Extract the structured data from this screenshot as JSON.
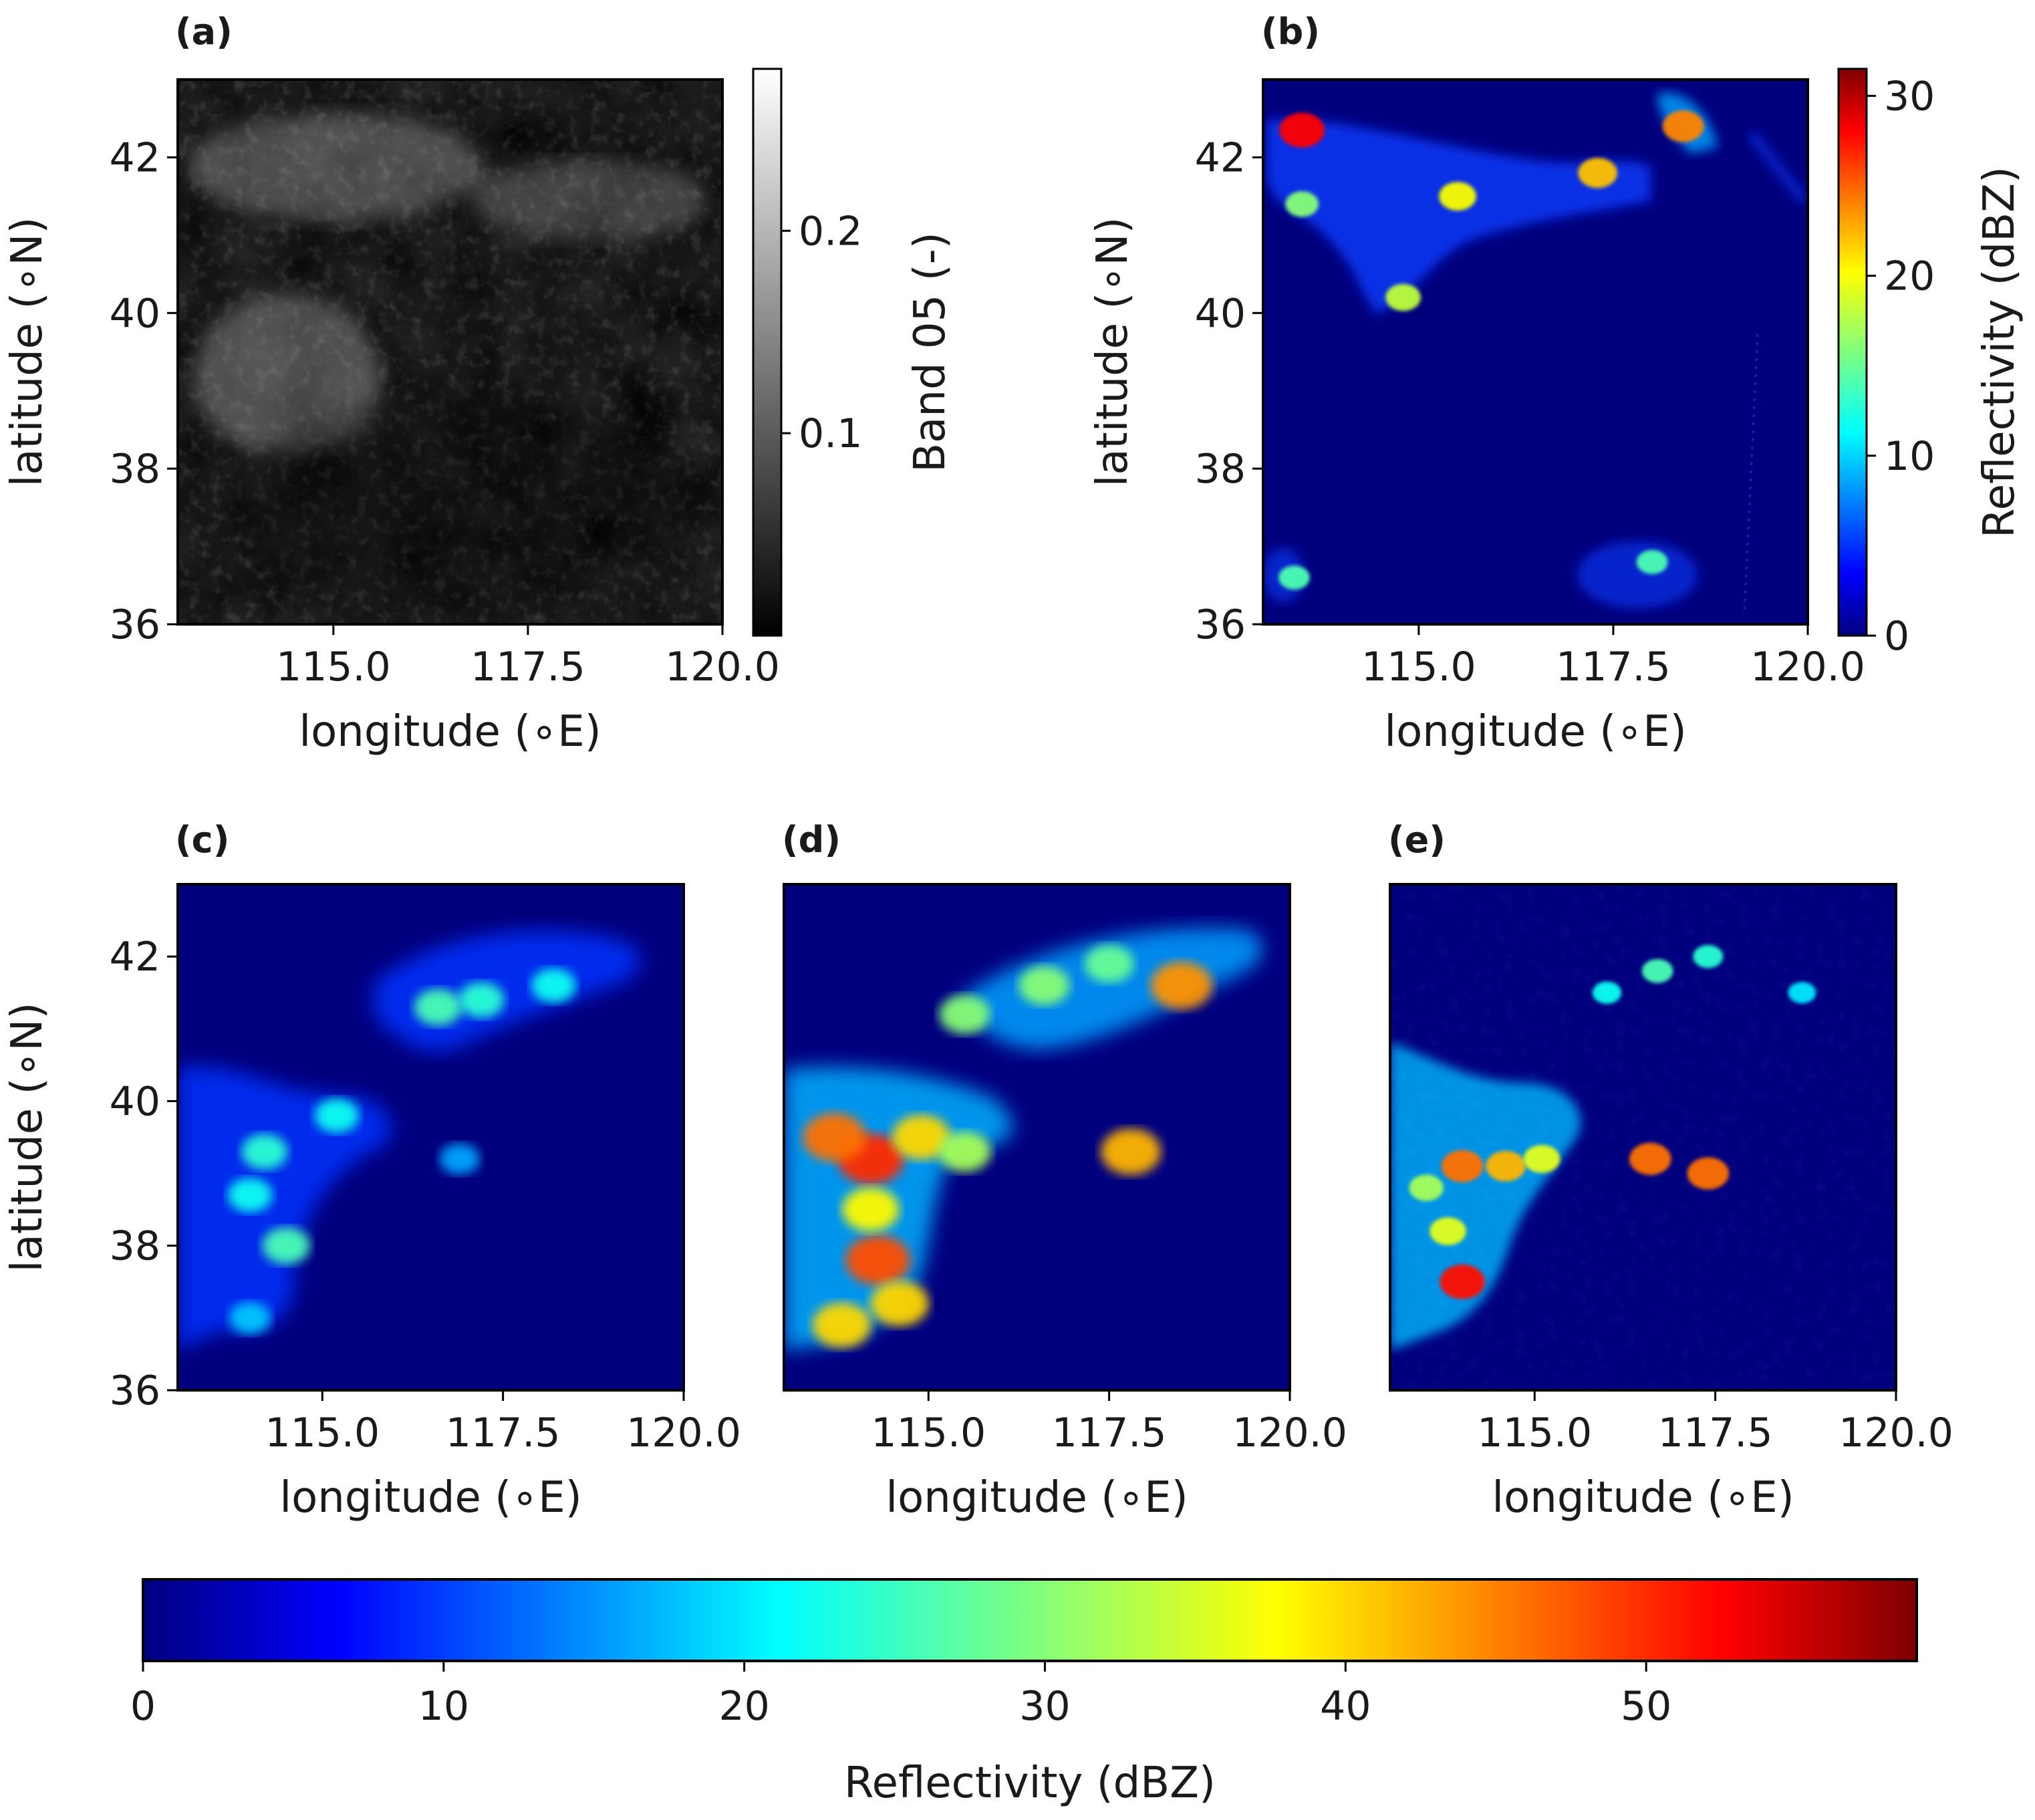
{
  "figure": {
    "colors": {
      "frame": "#000000",
      "background": "#00007f",
      "jet_stops": [
        "#00007f",
        "#0000ff",
        "#00ffff",
        "#7fff7f",
        "#ffff00",
        "#ff0000",
        "#7f0000"
      ]
    }
  },
  "chart_data": [
    {
      "id": "a",
      "panel_label": "(a)",
      "type": "heatmap",
      "description_type": "grayscale satellite image",
      "xlabel": "longitude ($^\\circ$E)",
      "xlabel_text": "longitude (∘E)",
      "ylabel_text": "latitude (∘N)",
      "xlim": [
        113,
        120
      ],
      "ylim": [
        36,
        43
      ],
      "xticks": [
        115.0,
        117.5,
        120.0
      ],
      "xtick_labels": [
        "115.0",
        "117.5",
        "120.0"
      ],
      "yticks": [
        36,
        38,
        40,
        42
      ],
      "ytick_labels": [
        "36",
        "38",
        "40",
        "42"
      ],
      "colorbar": {
        "label": "Band 05 (-)",
        "colormap": "gray",
        "range": [
          0.0,
          0.28
        ],
        "ticks": [
          0.1,
          0.2
        ],
        "tick_labels": [
          "0.1",
          "0.2"
        ]
      }
    },
    {
      "id": "b",
      "panel_label": "(b)",
      "type": "heatmap",
      "xlabel_text": "longitude (∘E)",
      "ylabel_text": "latitude (∘N)",
      "xlim": [
        113,
        120
      ],
      "ylim": [
        36,
        43
      ],
      "xticks": [
        115.0,
        117.5,
        120.0
      ],
      "xtick_labels": [
        "115.0",
        "117.5",
        "120.0"
      ],
      "yticks": [
        36,
        38,
        40,
        42
      ],
      "ytick_labels": [
        "36",
        "38",
        "40",
        "42"
      ],
      "colorbar": {
        "label": "Reflectivity (dBZ)",
        "colormap": "jet",
        "range": [
          0,
          31.5
        ],
        "ticks": [
          0,
          10,
          20,
          30
        ],
        "tick_labels": [
          "0",
          "10",
          "20",
          "30"
        ]
      },
      "features": [
        {
          "lon": 113.5,
          "lat": 42.35,
          "dbz": 28
        },
        {
          "lon": 115.5,
          "lat": 41.5,
          "dbz": 20
        },
        {
          "lon": 117.3,
          "lat": 41.8,
          "dbz": 22
        },
        {
          "lon": 118.4,
          "lat": 42.4,
          "dbz": 24
        },
        {
          "lon": 114.8,
          "lat": 40.2,
          "dbz": 18
        },
        {
          "lon": 113.5,
          "lat": 41.4,
          "dbz": 16
        },
        {
          "lon": 113.4,
          "lat": 36.6,
          "dbz": 14
        },
        {
          "lon": 118.0,
          "lat": 36.8,
          "dbz": 14
        }
      ]
    },
    {
      "id": "c",
      "panel_label": "(c)",
      "type": "heatmap",
      "xlabel_text": "longitude (∘E)",
      "ylabel_text": "latitude (∘N)",
      "xlim": [
        113,
        120
      ],
      "ylim": [
        36,
        43
      ],
      "xticks": [
        115.0,
        117.5,
        120.0
      ],
      "xtick_labels": [
        "115.0",
        "117.5",
        "120.0"
      ],
      "yticks": [
        36,
        38,
        40,
        42
      ],
      "ytick_labels": [
        "36",
        "38",
        "40",
        "42"
      ],
      "features": [
        {
          "lon": 114.2,
          "lat": 39.3,
          "dbz": 24
        },
        {
          "lon": 114.5,
          "lat": 38.0,
          "dbz": 26
        },
        {
          "lon": 114.0,
          "lat": 38.7,
          "dbz": 22
        },
        {
          "lon": 115.2,
          "lat": 39.8,
          "dbz": 22
        },
        {
          "lon": 116.6,
          "lat": 41.3,
          "dbz": 26
        },
        {
          "lon": 117.2,
          "lat": 41.4,
          "dbz": 24
        },
        {
          "lon": 118.2,
          "lat": 41.6,
          "dbz": 22
        },
        {
          "lon": 114.0,
          "lat": 37.0,
          "dbz": 18
        },
        {
          "lon": 116.9,
          "lat": 39.2,
          "dbz": 16
        }
      ]
    },
    {
      "id": "d",
      "panel_label": "(d)",
      "type": "heatmap",
      "xlabel_text": "longitude (∘E)",
      "xlim": [
        113,
        120
      ],
      "ylim": [
        36,
        43
      ],
      "xticks": [
        115.0,
        117.5,
        120.0
      ],
      "xtick_labels": [
        "115.0",
        "117.5",
        "120.0"
      ],
      "features": [
        {
          "lon": 114.2,
          "lat": 39.2,
          "dbz": 50
        },
        {
          "lon": 113.7,
          "lat": 39.5,
          "dbz": 46
        },
        {
          "lon": 114.3,
          "lat": 37.8,
          "dbz": 48
        },
        {
          "lon": 114.9,
          "lat": 39.5,
          "dbz": 40
        },
        {
          "lon": 114.2,
          "lat": 38.5,
          "dbz": 38
        },
        {
          "lon": 114.6,
          "lat": 37.2,
          "dbz": 40
        },
        {
          "lon": 113.8,
          "lat": 36.9,
          "dbz": 40
        },
        {
          "lon": 115.5,
          "lat": 39.3,
          "dbz": 32
        },
        {
          "lon": 117.8,
          "lat": 39.3,
          "dbz": 42
        },
        {
          "lon": 118.5,
          "lat": 41.6,
          "dbz": 44
        },
        {
          "lon": 116.6,
          "lat": 41.6,
          "dbz": 30
        },
        {
          "lon": 117.5,
          "lat": 41.9,
          "dbz": 28
        },
        {
          "lon": 115.5,
          "lat": 41.2,
          "dbz": 30
        }
      ]
    },
    {
      "id": "e",
      "panel_label": "(e)",
      "type": "heatmap",
      "xlabel_text": "longitude (∘E)",
      "xlim": [
        113,
        120
      ],
      "ylim": [
        36,
        43
      ],
      "xticks": [
        115.0,
        117.5,
        120.0
      ],
      "xtick_labels": [
        "115.0",
        "117.5",
        "120.0"
      ],
      "features": [
        {
          "lon": 114.0,
          "lat": 37.5,
          "dbz": 52
        },
        {
          "lon": 114.0,
          "lat": 39.1,
          "dbz": 46
        },
        {
          "lon": 114.6,
          "lat": 39.1,
          "dbz": 42
        },
        {
          "lon": 115.1,
          "lat": 39.2,
          "dbz": 36
        },
        {
          "lon": 113.5,
          "lat": 38.8,
          "dbz": 32
        },
        {
          "lon": 113.8,
          "lat": 38.2,
          "dbz": 36
        },
        {
          "lon": 116.6,
          "lat": 39.2,
          "dbz": 46
        },
        {
          "lon": 117.4,
          "lat": 39.0,
          "dbz": 46
        },
        {
          "lon": 116.7,
          "lat": 41.8,
          "dbz": 26
        },
        {
          "lon": 117.4,
          "lat": 42.0,
          "dbz": 24
        },
        {
          "lon": 118.7,
          "lat": 41.5,
          "dbz": 20
        },
        {
          "lon": 116.0,
          "lat": 41.5,
          "dbz": 22
        }
      ]
    }
  ],
  "shared_colorbar": {
    "label": "Reflectivity (dBZ)",
    "colormap": "jet",
    "range": [
      0,
      59
    ],
    "ticks": [
      0,
      10,
      20,
      30,
      40,
      50
    ],
    "tick_labels": [
      "0",
      "10",
      "20",
      "30",
      "40",
      "50"
    ]
  }
}
